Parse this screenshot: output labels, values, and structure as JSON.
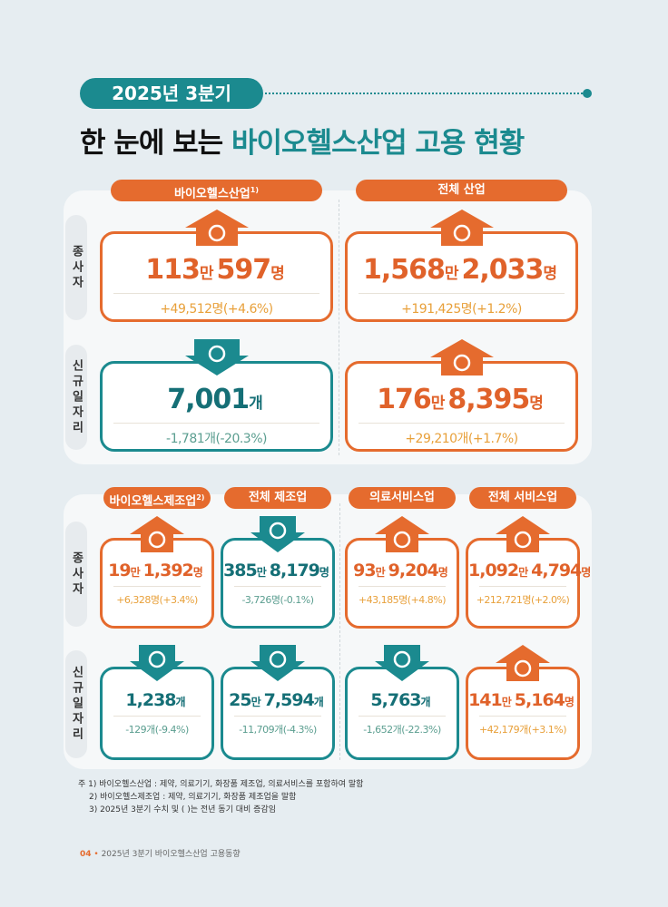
{
  "header": {
    "badge": "2025년 3분기",
    "title_prefix": "한 눈에 보는",
    "title_highlight": "바이오헬스산업 고용 현황"
  },
  "panels": [
    {
      "row_labels": [
        "종사자",
        "신규일자리"
      ],
      "columns": [
        {
          "title": "바이오헬스산업",
          "note": "1)",
          "cards": [
            {
              "value": [
                "113",
                "만",
                "597",
                "명"
              ],
              "change": "+49,512명(+4.6%)",
              "tone": "orange"
            },
            {
              "value": [
                "7,001",
                "개"
              ],
              "change": "-1,781개(-20.3%)",
              "tone": "teal"
            }
          ]
        },
        {
          "title": "전체 산업",
          "cards": [
            {
              "value": [
                "1,568",
                "만",
                "2,033",
                "명"
              ],
              "change": "+191,425명(+1.2%)",
              "tone": "orange"
            },
            {
              "value": [
                "176",
                "만",
                "8,395",
                "명"
              ],
              "change": "+29,210개(+1.7%)",
              "tone": "orange"
            }
          ]
        }
      ]
    },
    {
      "row_labels": [
        "종사자",
        "신규일자리"
      ],
      "columns": [
        {
          "title": "바이오헬스제조업",
          "note": "2)",
          "cards": [
            {
              "value": [
                "19",
                "만",
                "1,392",
                "명"
              ],
              "change": "+6,328명(+3.4%)",
              "tone": "orange"
            },
            {
              "value": [
                "1,238",
                "개"
              ],
              "change": "-129개(-9.4%)",
              "tone": "teal"
            }
          ]
        },
        {
          "title": "전체 제조업",
          "cards": [
            {
              "value": [
                "385",
                "만",
                "8,179",
                "명"
              ],
              "change": "-3,726명(-0.1%)",
              "tone": "teal"
            },
            {
              "value": [
                "25",
                "만",
                "7,594",
                "개"
              ],
              "change": "-11,709개(-4.3%)",
              "tone": "teal"
            }
          ]
        },
        {
          "title": "의료서비스업",
          "cards": [
            {
              "value": [
                "93",
                "만",
                "9,204",
                "명"
              ],
              "change": "+43,185명(+4.8%)",
              "tone": "orange"
            },
            {
              "value": [
                "5,763",
                "개"
              ],
              "change": "-1,652개(-22.3%)",
              "tone": "teal"
            }
          ]
        },
        {
          "title": "전체 서비스업",
          "cards": [
            {
              "value": [
                "1,092",
                "만",
                "4,794",
                "명"
              ],
              "change": "+212,721명(+2.0%)",
              "tone": "orange"
            },
            {
              "value": [
                "141",
                "만",
                "5,164",
                "명"
              ],
              "change": "+42,179개(+3.1%)",
              "tone": "orange"
            }
          ]
        }
      ]
    }
  ],
  "footnotes": [
    "주 1) 바이오헬스산업 : 제약, 의료기기, 화장품 제조업, 의료서비스를 포함하여 말함",
    "2) 바이오헬스제조업 : 제약, 의료기기, 화장품 제조업을 말함",
    "3) 2025년 3분기 수치 및 ( )는 전년 동기 대비 증감임"
  ],
  "footer": {
    "page": "04",
    "text": "2025년 3분기 바이오헬스산업 고용동향"
  }
}
